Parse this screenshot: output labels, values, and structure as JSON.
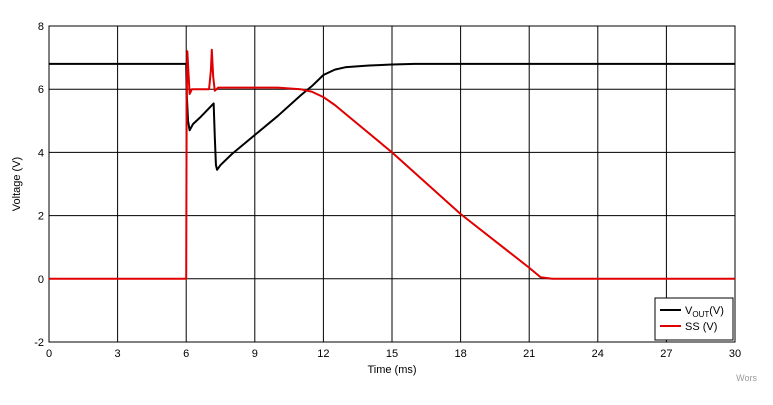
{
  "chart_data": {
    "type": "line",
    "xlabel": "Time (ms)",
    "ylabel": "Voltage (V)",
    "xlim": [
      0,
      30
    ],
    "ylim": [
      -2,
      8
    ],
    "x_ticks": [
      0,
      3,
      6,
      9,
      12,
      15,
      18,
      21,
      24,
      27,
      30
    ],
    "y_ticks": [
      -2,
      0,
      2,
      4,
      6,
      8
    ],
    "grid": true,
    "legend_position": "bottom-right",
    "series": [
      {
        "name": "VOUT(V)",
        "name_main": "V",
        "name_sub": "OUT",
        "name_suffix": "(V)",
        "color": "#000000",
        "points": [
          [
            0,
            6.8
          ],
          [
            6.0,
            6.8
          ],
          [
            6.02,
            5.9
          ],
          [
            6.08,
            5.0
          ],
          [
            6.15,
            4.7
          ],
          [
            6.3,
            4.9
          ],
          [
            6.6,
            5.1
          ],
          [
            7.0,
            5.4
          ],
          [
            7.2,
            5.55
          ],
          [
            7.25,
            4.5
          ],
          [
            7.3,
            3.6
          ],
          [
            7.35,
            3.45
          ],
          [
            7.5,
            3.6
          ],
          [
            8.0,
            3.95
          ],
          [
            9.0,
            4.55
          ],
          [
            10.0,
            5.15
          ],
          [
            11.0,
            5.8
          ],
          [
            11.5,
            6.1
          ],
          [
            12.0,
            6.45
          ],
          [
            12.5,
            6.62
          ],
          [
            13.0,
            6.7
          ],
          [
            14.0,
            6.75
          ],
          [
            15.0,
            6.78
          ],
          [
            16.0,
            6.8
          ],
          [
            30,
            6.8
          ]
        ]
      },
      {
        "name": "SS (V)",
        "color": "#e00000",
        "points": [
          [
            0,
            0.0
          ],
          [
            5.95,
            0.0
          ],
          [
            6.0,
            0.0
          ],
          [
            6.02,
            5.5
          ],
          [
            6.05,
            7.2
          ],
          [
            6.1,
            6.5
          ],
          [
            6.15,
            5.85
          ],
          [
            6.25,
            6.0
          ],
          [
            7.0,
            6.0
          ],
          [
            7.08,
            6.6
          ],
          [
            7.12,
            7.25
          ],
          [
            7.18,
            6.4
          ],
          [
            7.25,
            5.95
          ],
          [
            7.4,
            6.05
          ],
          [
            10.0,
            6.05
          ],
          [
            11.0,
            6.0
          ],
          [
            11.5,
            5.92
          ],
          [
            12.0,
            5.75
          ],
          [
            12.5,
            5.5
          ],
          [
            13.0,
            5.2
          ],
          [
            15.0,
            4.0
          ],
          [
            18.0,
            2.05
          ],
          [
            21.0,
            0.35
          ],
          [
            21.5,
            0.05
          ],
          [
            22.0,
            0.0
          ],
          [
            30,
            0.0
          ]
        ]
      }
    ],
    "watermark": "Wors"
  }
}
